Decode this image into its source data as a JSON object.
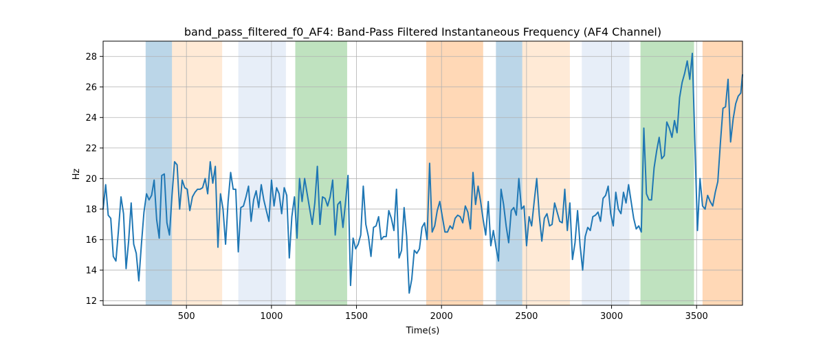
{
  "chart_data": {
    "type": "line",
    "title": "band_pass_filtered_f0_AF4: Band-Pass Filtered Instantaneous Frequency (AF4 Channel)",
    "xlabel": "Time(s)",
    "ylabel": "Hz",
    "xlim": [
      10,
      3770
    ],
    "ylim": [
      11.7,
      29.0
    ],
    "xticks": [
      500,
      1000,
      1500,
      2000,
      2500,
      3000,
      3500
    ],
    "yticks": [
      12,
      14,
      16,
      18,
      20,
      22,
      24,
      26,
      28
    ],
    "grid": true,
    "line_color": "#1f77b4",
    "bands": [
      {
        "x0": 260,
        "x1": 415,
        "color": "#1f77b4",
        "opacity": 0.3
      },
      {
        "x0": 415,
        "x1": 710,
        "color": "#ffbb78",
        "opacity": 0.3
      },
      {
        "x0": 805,
        "x1": 1085,
        "color": "#aec7e8",
        "opacity": 0.3
      },
      {
        "x0": 1140,
        "x1": 1445,
        "color": "#2ca02c",
        "opacity": 0.3
      },
      {
        "x0": 1910,
        "x1": 2245,
        "color": "#ff7f0e",
        "opacity": 0.3
      },
      {
        "x0": 2320,
        "x1": 2475,
        "color": "#1f77b4",
        "opacity": 0.3
      },
      {
        "x0": 2475,
        "x1": 2755,
        "color": "#ffbb78",
        "opacity": 0.3
      },
      {
        "x0": 2825,
        "x1": 3105,
        "color": "#aec7e8",
        "opacity": 0.3
      },
      {
        "x0": 3170,
        "x1": 3485,
        "color": "#2ca02c",
        "opacity": 0.3
      },
      {
        "x0": 3535,
        "x1": 3770,
        "color": "#ff7f0e",
        "opacity": 0.3
      }
    ],
    "series": [
      {
        "x": [
          10,
          25,
          40,
          55,
          70,
          85,
          100,
          115,
          130,
          145,
          160,
          175,
          190,
          205,
          220,
          235,
          250,
          265,
          280,
          295,
          310,
          325,
          340,
          355,
          370,
          385,
          400,
          415,
          430,
          445,
          460,
          475,
          490,
          505,
          520,
          535,
          550,
          565,
          580,
          595,
          610,
          625,
          640,
          655,
          670,
          685,
          700,
          715,
          730,
          745,
          760,
          775,
          790,
          805,
          820,
          835,
          850,
          865,
          880,
          895,
          910,
          925,
          940,
          955,
          970,
          985,
          1000,
          1015,
          1030,
          1045,
          1060,
          1075,
          1090,
          1105,
          1120,
          1135,
          1150,
          1165,
          1180,
          1195,
          1210,
          1225,
          1240,
          1255,
          1270,
          1285,
          1300,
          1315,
          1330,
          1345,
          1360,
          1375,
          1390,
          1405,
          1420,
          1435,
          1450,
          1465,
          1480,
          1495,
          1510,
          1525,
          1540,
          1555,
          1570,
          1585,
          1600,
          1615,
          1630,
          1645,
          1660,
          1675,
          1690,
          1705,
          1720,
          1735,
          1750,
          1765,
          1780,
          1795,
          1810,
          1825,
          1840,
          1855,
          1870,
          1885,
          1900,
          1915,
          1930,
          1945,
          1960,
          1975,
          1990,
          2005,
          2020,
          2035,
          2050,
          2065,
          2080,
          2095,
          2110,
          2125,
          2140,
          2155,
          2170,
          2185,
          2200,
          2215,
          2230,
          2245,
          2260,
          2275,
          2290,
          2305,
          2320,
          2335,
          2350,
          2365,
          2380,
          2395,
          2410,
          2425,
          2440,
          2455,
          2470,
          2485,
          2500,
          2515,
          2530,
          2545,
          2560,
          2575,
          2590,
          2605,
          2620,
          2635,
          2650,
          2665,
          2680,
          2695,
          2710,
          2725,
          2740,
          2755,
          2770,
          2785,
          2800,
          2815,
          2830,
          2845,
          2860,
          2875,
          2890,
          2905,
          2920,
          2935,
          2950,
          2965,
          2980,
          2995,
          3010,
          3025,
          3040,
          3055,
          3070,
          3085,
          3100,
          3115,
          3130,
          3145,
          3160,
          3175,
          3190,
          3205,
          3220,
          3235,
          3250,
          3265,
          3280,
          3295,
          3310,
          3325,
          3340,
          3355,
          3370,
          3385,
          3400,
          3415,
          3430,
          3445,
          3460,
          3475,
          3490,
          3505,
          3520,
          3535,
          3550,
          3565,
          3580,
          3595,
          3610,
          3625,
          3640,
          3655,
          3670,
          3685,
          3700,
          3715,
          3730,
          3745,
          3760,
          3770
        ],
        "y": [
          18.0,
          19.6,
          17.6,
          17.4,
          14.9,
          14.6,
          16.6,
          18.8,
          17.7,
          14.1,
          15.9,
          18.4,
          15.7,
          15.1,
          13.3,
          15.7,
          17.8,
          19.0,
          18.6,
          18.9,
          19.9,
          17.3,
          16.1,
          20.2,
          20.3,
          17.1,
          16.3,
          18.9,
          21.1,
          20.9,
          18.0,
          19.9,
          19.4,
          19.3,
          17.9,
          18.8,
          19.1,
          19.3,
          19.3,
          19.4,
          20.0,
          19.0,
          21.1,
          19.7,
          20.8,
          15.5,
          19.0,
          18.0,
          15.7,
          18.5,
          20.4,
          19.3,
          19.3,
          15.2,
          18.1,
          18.2,
          18.8,
          19.5,
          17.2,
          18.6,
          19.2,
          18.1,
          19.6,
          18.6,
          17.9,
          17.2,
          19.9,
          18.2,
          19.4,
          19.0,
          17.7,
          19.4,
          18.9,
          14.8,
          17.5,
          18.8,
          16.1,
          20.0,
          18.5,
          20.0,
          19.0,
          18.0,
          17.0,
          18.4,
          20.8,
          17.0,
          18.8,
          18.7,
          18.2,
          18.8,
          19.9,
          16.3,
          18.3,
          18.5,
          16.8,
          18.4,
          20.2,
          13.0,
          16.1,
          15.4,
          15.7,
          16.3,
          19.5,
          17.0,
          16.2,
          14.9,
          16.8,
          16.9,
          17.5,
          16.0,
          16.2,
          16.2,
          17.9,
          17.4,
          16.6,
          19.3,
          14.8,
          15.3,
          18.1,
          16.2,
          12.5,
          13.4,
          15.3,
          15.1,
          15.4,
          16.8,
          17.1,
          16.0,
          21.0,
          16.5,
          16.9,
          17.9,
          18.5,
          17.5,
          16.5,
          16.5,
          16.9,
          16.7,
          17.4,
          17.6,
          17.5,
          17.1,
          18.2,
          17.8,
          16.7,
          20.4,
          18.3,
          19.5,
          18.5,
          17.3,
          16.3,
          18.5,
          15.6,
          16.6,
          15.5,
          14.6,
          19.3,
          18.3,
          16.9,
          15.8,
          17.9,
          18.1,
          17.6,
          20.0,
          18.0,
          18.2,
          15.6,
          17.5,
          16.9,
          18.5,
          20.0,
          17.6,
          15.9,
          17.4,
          17.7,
          16.9,
          17.0,
          18.4,
          17.8,
          17.2,
          17.1,
          19.3,
          16.6,
          18.4,
          14.7,
          15.8,
          17.9,
          15.6,
          14.0,
          16.2,
          16.8,
          16.6,
          17.5,
          17.6,
          17.8,
          17.2,
          18.7,
          18.9,
          19.5,
          17.7,
          16.9,
          19.1,
          18.0,
          17.7,
          19.1,
          18.4,
          19.6,
          18.5,
          17.4,
          16.7,
          16.9,
          16.5,
          23.3,
          19.0,
          18.6,
          18.6,
          20.7,
          21.8,
          22.7,
          21.3,
          21.5,
          23.7,
          23.3,
          22.7,
          23.8,
          23.0,
          25.3,
          26.3,
          26.9,
          27.7,
          26.5,
          28.2,
          22.4,
          16.6,
          20.0,
          18.2,
          18.0,
          18.9,
          18.5,
          18.2,
          19.1,
          19.8,
          22.3,
          24.6,
          24.7,
          26.5,
          22.4,
          23.9,
          24.9,
          25.4,
          25.6,
          26.8
        ]
      }
    ]
  }
}
